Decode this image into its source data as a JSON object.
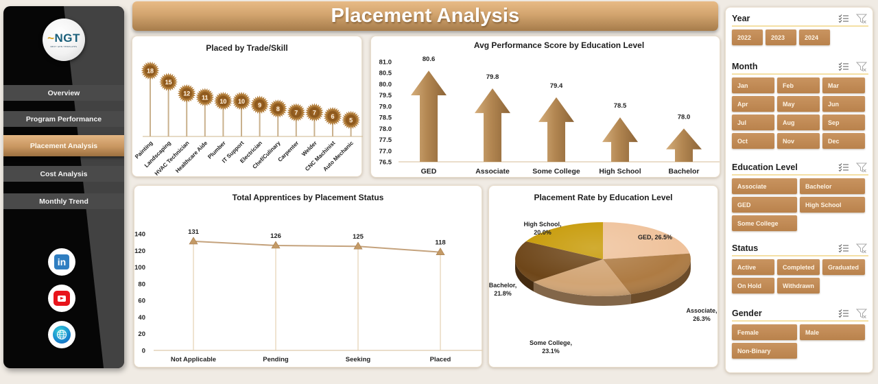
{
  "sidebar": {
    "logo": {
      "text": "NGT",
      "subtitle": "NEXT GEN TEMPLATES"
    },
    "nav": [
      {
        "label": "Overview",
        "active": false
      },
      {
        "label": "Program Performance",
        "active": false
      },
      {
        "label": "Placement Analysis",
        "active": true
      },
      {
        "label": "Cost Analysis",
        "active": false
      },
      {
        "label": "Monthly Trend",
        "active": false
      }
    ],
    "social": [
      {
        "name": "linkedin-icon",
        "glyph": "in"
      },
      {
        "name": "youtube-icon"
      },
      {
        "name": "globe-icon"
      }
    ]
  },
  "header": {
    "title": "Placement Analysis"
  },
  "colors": {
    "accent": "#c89660",
    "header_top": "#e8bb86",
    "header_bottom": "#a67c4b",
    "sidebar_dark": "#060606",
    "sidebar_gray": "#424242",
    "chip": "#c08a55",
    "burst": "#8f5a1f",
    "stem": "#c9b08c"
  },
  "chart_data": [
    {
      "type": "bar",
      "variant": "lollipop-starburst",
      "title": "Placed by Trade/Skill",
      "categories": [
        "Painting",
        "Landscaping",
        "HVAC Technician",
        "Healthcare Aide",
        "Plumber",
        "IT Support",
        "Electrician",
        "Chef/Culinary",
        "Carpenter",
        "Welder",
        "CNC Machinist",
        "Auto Mechanic"
      ],
      "values": [
        18,
        15,
        12,
        11,
        10,
        10,
        9,
        8,
        7,
        7,
        6,
        5
      ],
      "xlabel": "",
      "ylabel": "",
      "grid": false
    },
    {
      "type": "bar",
      "variant": "arrow",
      "title": "Avg Performance Score by Education Level",
      "categories": [
        "GED",
        "Associate",
        "Some College",
        "High School",
        "Bachelor"
      ],
      "values": [
        80.6,
        79.8,
        79.4,
        78.5,
        78.0
      ],
      "yticks": [
        "81.0",
        "80.5",
        "80.0",
        "79.5",
        "79.0",
        "78.5",
        "78.0",
        "77.5",
        "77.0",
        "76.5"
      ],
      "ylim": [
        76.5,
        81.0
      ],
      "grid": false
    },
    {
      "type": "line",
      "title": "Total Apprentices by Placement Status",
      "categories": [
        "Not Applicable",
        "Pending",
        "Seeking",
        "Placed"
      ],
      "values": [
        131,
        126,
        125,
        118
      ],
      "yticks": [
        "140",
        "120",
        "100",
        "80",
        "60",
        "40",
        "20",
        "0"
      ],
      "ylim": [
        0,
        140
      ],
      "markers": "triangle",
      "drop_lines": true,
      "grid": false
    },
    {
      "type": "pie",
      "variant": "3d",
      "title": "Placement Rate by Education Level",
      "slices": [
        {
          "label": "GED",
          "value": 26.5,
          "display": "GED, 26.5%",
          "color": "#efc29b"
        },
        {
          "label": "Associate",
          "value": 26.3,
          "display": "Associate,",
          "display2": "26.3%",
          "color": "#ae7b43"
        },
        {
          "label": "Some College",
          "value": 23.1,
          "display": "Some College,",
          "display2": "23.1%",
          "color": "#d2a575"
        },
        {
          "label": "Bachelor",
          "value": 21.8,
          "display": "Bachelor,",
          "display2": "21.8%",
          "color": "#6e4619"
        },
        {
          "label": "High School",
          "value": 20.0,
          "display": "High School,",
          "display2": "20.0%",
          "color": "#c79a06"
        }
      ]
    }
  ],
  "filters": {
    "year": {
      "title": "Year",
      "options": [
        "2022",
        "2023",
        "2024"
      ]
    },
    "month": {
      "title": "Month",
      "options": [
        "Jan",
        "Feb",
        "Mar",
        "Apr",
        "May",
        "Jun",
        "Jul",
        "Aug",
        "Sep",
        "Oct",
        "Nov",
        "Dec"
      ]
    },
    "education": {
      "title": "Education Level",
      "options": [
        "Associate",
        "Bachelor",
        "GED",
        "High School",
        "Some College"
      ]
    },
    "status": {
      "title": "Status",
      "options": [
        "Active",
        "Completed",
        "Graduated",
        "On Hold",
        "Withdrawn"
      ]
    },
    "gender": {
      "title": "Gender",
      "options": [
        "Female",
        "Male",
        "Non-Binary"
      ]
    }
  }
}
